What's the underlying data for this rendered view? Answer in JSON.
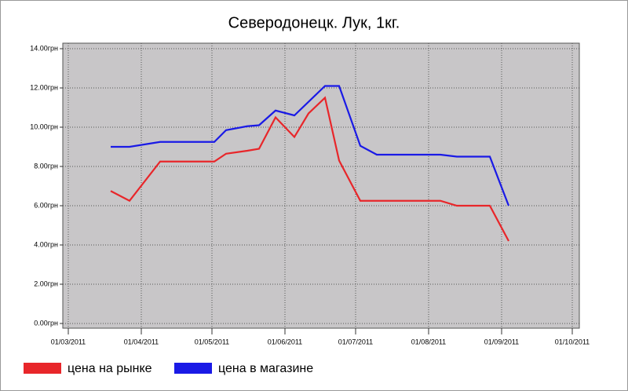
{
  "chart_data": {
    "type": "line",
    "title": "Северодонецк. Лук, 1кг.",
    "xlim": [
      "01/03/2011",
      "01/10/2011"
    ],
    "xticks": [
      "01/03/2011",
      "01/04/2011",
      "01/05/2011",
      "01/06/2011",
      "01/07/2011",
      "01/08/2011",
      "01/09/2011",
      "01/10/2011"
    ],
    "ylim": [
      0,
      14
    ],
    "yticks": [
      {
        "value": 0,
        "label": "0.00грн"
      },
      {
        "value": 2,
        "label": "2.00грн"
      },
      {
        "value": 4,
        "label": "4.00грн"
      },
      {
        "value": 6,
        "label": "6.00грн"
      },
      {
        "value": 8,
        "label": "8.00грн"
      },
      {
        "value": 10,
        "label": "10.00грн"
      },
      {
        "value": 12,
        "label": "12.00грн"
      },
      {
        "value": 14,
        "label": "14.00грн"
      }
    ],
    "grid": true,
    "series": [
      {
        "name": "цена на рынке",
        "color": "#e8262a",
        "x": [
          "19/03/2011",
          "27/03/2011",
          "09/04/2011",
          "02/05/2011",
          "07/05/2011",
          "16/05/2011",
          "21/05/2011",
          "28/05/2011",
          "05/06/2011",
          "11/06/2011",
          "18/06/2011",
          "24/06/2011",
          "03/07/2011",
          "06/08/2011",
          "13/08/2011",
          "27/08/2011",
          "04/09/2011"
        ],
        "values": [
          6.75,
          6.25,
          8.25,
          8.25,
          8.65,
          8.8,
          8.9,
          10.5,
          9.5,
          10.7,
          11.5,
          8.3,
          6.25,
          6.25,
          6.0,
          6.0,
          4.2
        ]
      },
      {
        "name": "цена в магазине",
        "color": "#1a1ae6",
        "x": [
          "19/03/2011",
          "27/03/2011",
          "09/04/2011",
          "02/05/2011",
          "07/05/2011",
          "16/05/2011",
          "21/05/2011",
          "28/05/2011",
          "05/06/2011",
          "18/06/2011",
          "24/06/2011",
          "03/07/2011",
          "10/07/2011",
          "06/08/2011",
          "13/08/2011",
          "27/08/2011",
          "04/09/2011"
        ],
        "values": [
          9.0,
          9.0,
          9.25,
          9.25,
          9.85,
          10.05,
          10.1,
          10.85,
          10.6,
          12.1,
          12.1,
          9.05,
          8.6,
          8.6,
          8.5,
          8.5,
          6.0
        ]
      }
    ]
  }
}
